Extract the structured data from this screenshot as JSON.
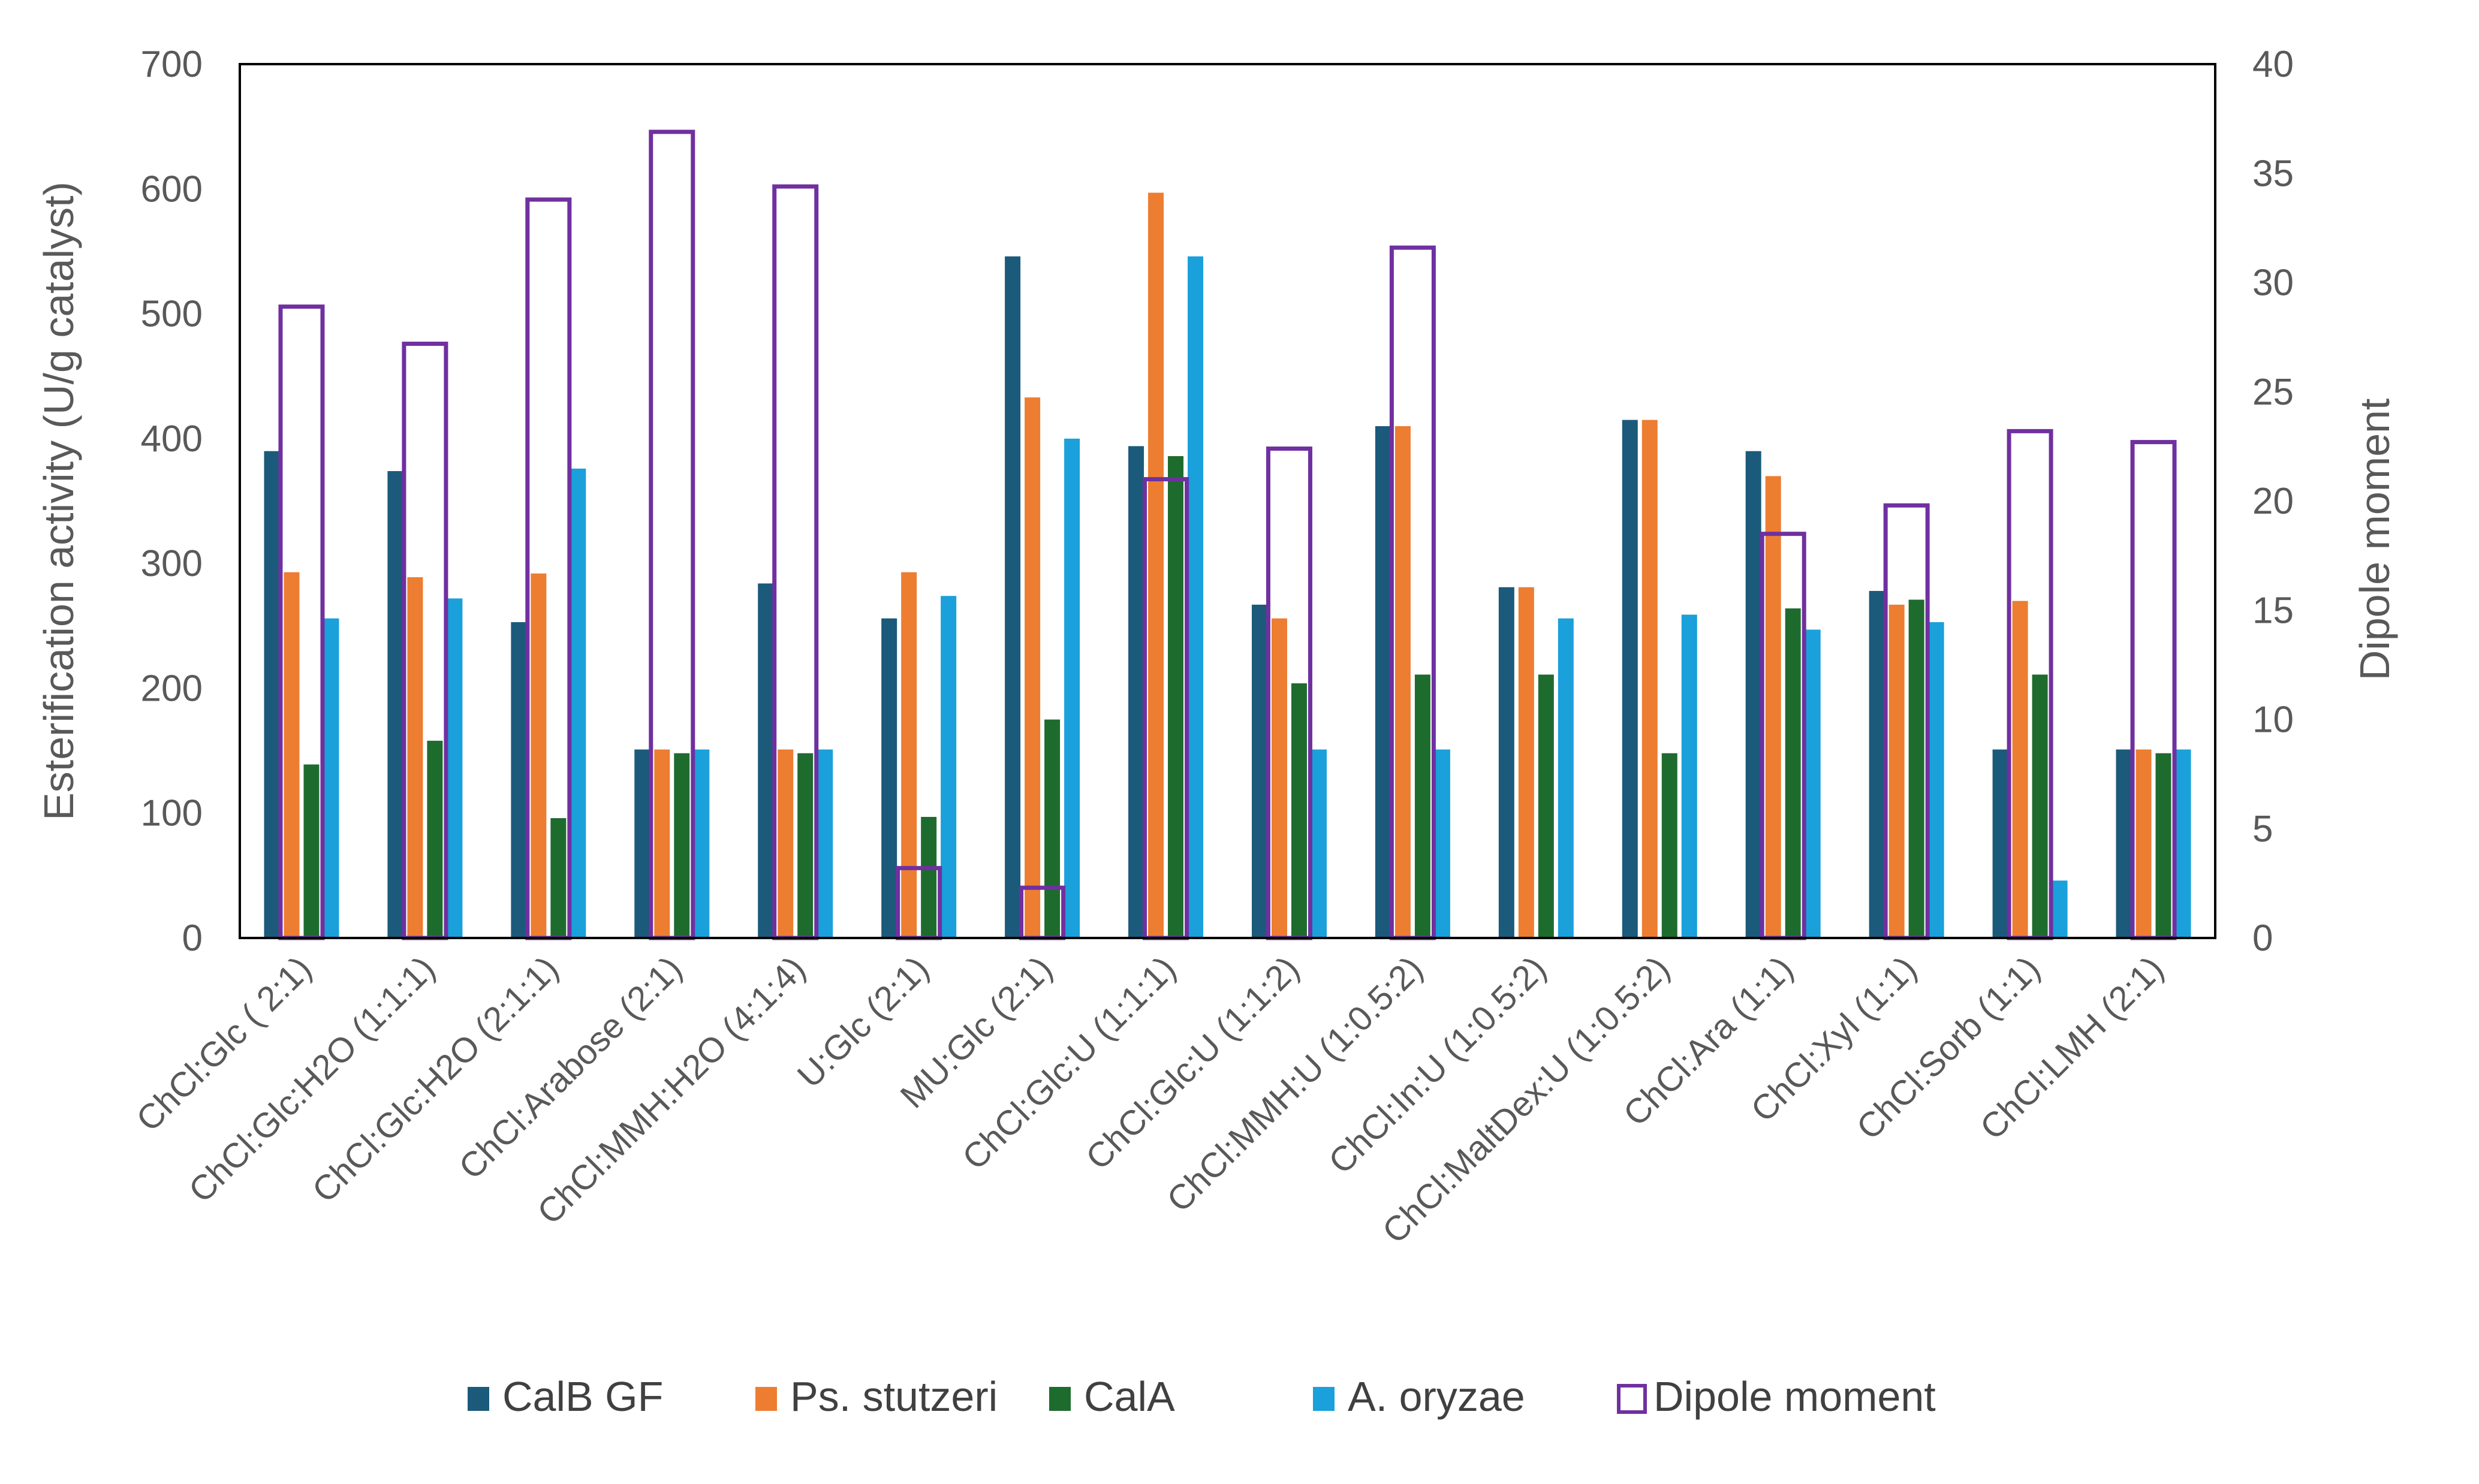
{
  "chart_data": {
    "type": "bar",
    "categories": [
      "ChCl:Glc ( 2:1)",
      "ChCl:Glc:H2O (1:1:1)",
      "ChCl:Glc:H2O (2:1:1)",
      "ChCl:Arabose (2:1)",
      "ChCl:MMH:H2O (4:1:4)",
      "U:Glc (2:1)",
      "MU:Glc (2:1)",
      "ChCl:Glc:U (1:1:1)",
      "ChCl:Glc:U (1:1:2)",
      "ChCl:MMH:U (1:0.5:2)",
      "ChCl:In:U (1:0.5:2)",
      "ChCl:MaltDex:U (1:0.5:2)",
      "ChCl:Ara (1:1)",
      "ChCl:Xyl (1:1)",
      "ChCl:Sorb (1:1)",
      "ChCl:LMH (2:1)"
    ],
    "series": [
      {
        "name": "CalB GF",
        "axis": "left",
        "color": "#1b5a7a",
        "values": [
          390,
          374,
          253,
          151,
          284,
          256,
          546,
          394,
          267,
          410,
          281,
          415,
          390,
          278,
          151,
          151
        ]
      },
      {
        "name": "Ps. stutzeri",
        "axis": "left",
        "color": "#ed7d31",
        "values": [
          293,
          289,
          292,
          151,
          151,
          293,
          433,
          597,
          256,
          410,
          281,
          415,
          370,
          267,
          270,
          151
        ]
      },
      {
        "name": "CalA",
        "axis": "left",
        "color": "#1e6b2e",
        "values": [
          139,
          158,
          96,
          148,
          148,
          97,
          175,
          386,
          204,
          211,
          211,
          148,
          264,
          271,
          211,
          148
        ]
      },
      {
        "name": "A. oryzae",
        "axis": "left",
        "color": "#1aa0db",
        "values": [
          256,
          272,
          376,
          151,
          151,
          274,
          400,
          546,
          151,
          151,
          256,
          259,
          247,
          253,
          46,
          151
        ]
      },
      {
        "name": "Dipole moment",
        "axis": "right",
        "color": "#7030a0",
        "style": "outline",
        "values": [
          28.9,
          27.2,
          33.8,
          36.9,
          34.4,
          3.2,
          2.3,
          21.0,
          22.4,
          31.6,
          0,
          0,
          18.5,
          19.8,
          23.2,
          22.7
        ]
      }
    ],
    "title": "",
    "ylabel": "Esterification activity (U/g catalyst)",
    "y2label": "Dipole moment",
    "ylim": [
      0,
      700
    ],
    "y2lim": [
      0,
      40
    ],
    "yticks": [
      "0",
      "100",
      "200",
      "300",
      "400",
      "500",
      "600",
      "700"
    ],
    "y2ticks": [
      "0",
      "5",
      "10",
      "15",
      "20",
      "25",
      "30",
      "35",
      "40"
    ],
    "grid": false,
    "legend_position": "bottom"
  }
}
